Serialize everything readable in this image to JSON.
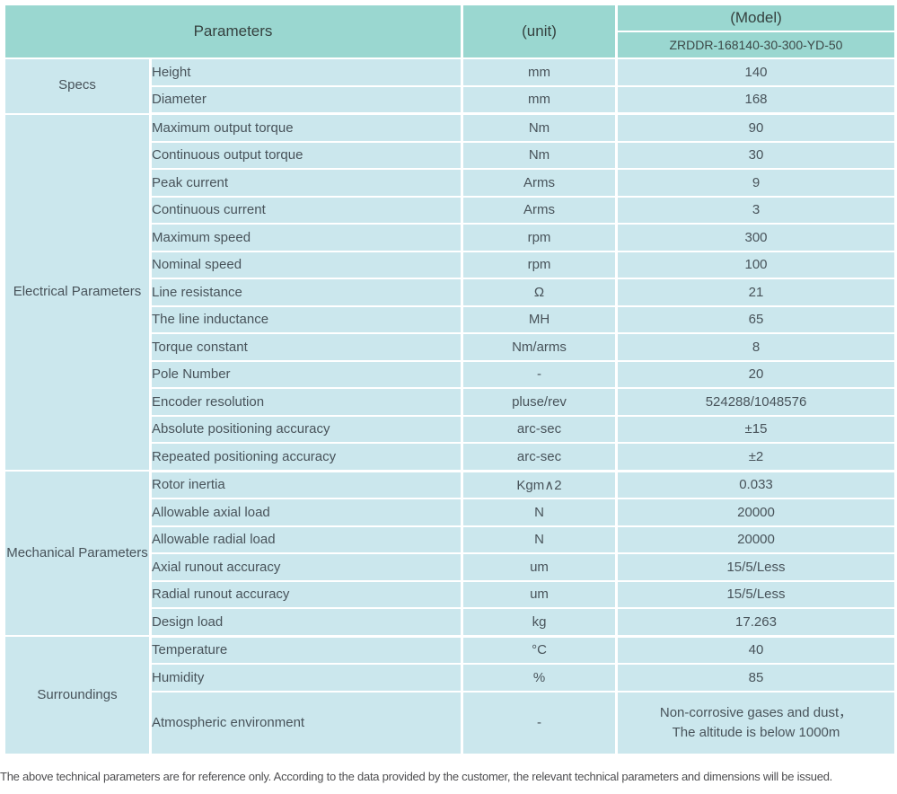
{
  "header": {
    "parameters_label": "Parameters",
    "unit_label": "(unit)",
    "model_label": "(Model)",
    "model_value": "ZRDDR-168140-30-300-YD-50"
  },
  "colors": {
    "header_teal": "#9ad7d0",
    "cell_blue": "#cbe7ed",
    "separator": "#ffffff"
  },
  "sections": [
    {
      "label": "Specs",
      "rows": [
        [
          "Height",
          "mm",
          "140"
        ],
        [
          "Diameter",
          "mm",
          "168"
        ]
      ]
    },
    {
      "label": "Electrical Parameters",
      "rows": [
        [
          "Maximum output torque",
          "Nm",
          "90"
        ],
        [
          "Continuous output torque",
          "Nm",
          "30"
        ],
        [
          "Peak current",
          "Arms",
          "9"
        ],
        [
          "Continuous current",
          "Arms",
          "3"
        ],
        [
          "Maximum speed",
          "rpm",
          "300"
        ],
        [
          "Nominal speed",
          "rpm",
          "100"
        ],
        [
          "Line resistance",
          "Ω",
          "21"
        ],
        [
          "The line inductance",
          "MH",
          "65"
        ],
        [
          "Torque constant",
          "Nm/arms",
          "8"
        ],
        [
          "Pole Number",
          "-",
          "20"
        ],
        [
          "Encoder resolution",
          "pluse/rev",
          "524288/1048576"
        ],
        [
          "Absolute positioning accuracy",
          "arc-sec",
          "±15"
        ],
        [
          "Repeated positioning accuracy",
          "arc-sec",
          "±2"
        ]
      ]
    },
    {
      "label": "Mechanical Parameters",
      "rows": [
        [
          "Rotor inertia",
          "Kgm∧2",
          "0.033"
        ],
        [
          "Allowable axial load",
          "N",
          "20000"
        ],
        [
          "Allowable radial load",
          "N",
          "20000"
        ],
        [
          "Axial runout accuracy",
          "um",
          "15/5/Less"
        ],
        [
          "Radial runout accuracy",
          "um",
          "15/5/Less"
        ],
        [
          "Design load",
          "kg",
          "17.263"
        ]
      ]
    },
    {
      "label": "Surroundings",
      "rows": [
        [
          "Temperature",
          "°C",
          "40"
        ],
        [
          "Humidity",
          "%",
          "85"
        ],
        [
          "Atmospheric environment",
          "-",
          "Non-corrosive gases and dust，\nThe altitude is below 1000m"
        ]
      ]
    }
  ],
  "footer_note": "The above technical parameters are for reference only. According to the data provided by the customer, the relevant technical parameters and dimensions will be issued."
}
